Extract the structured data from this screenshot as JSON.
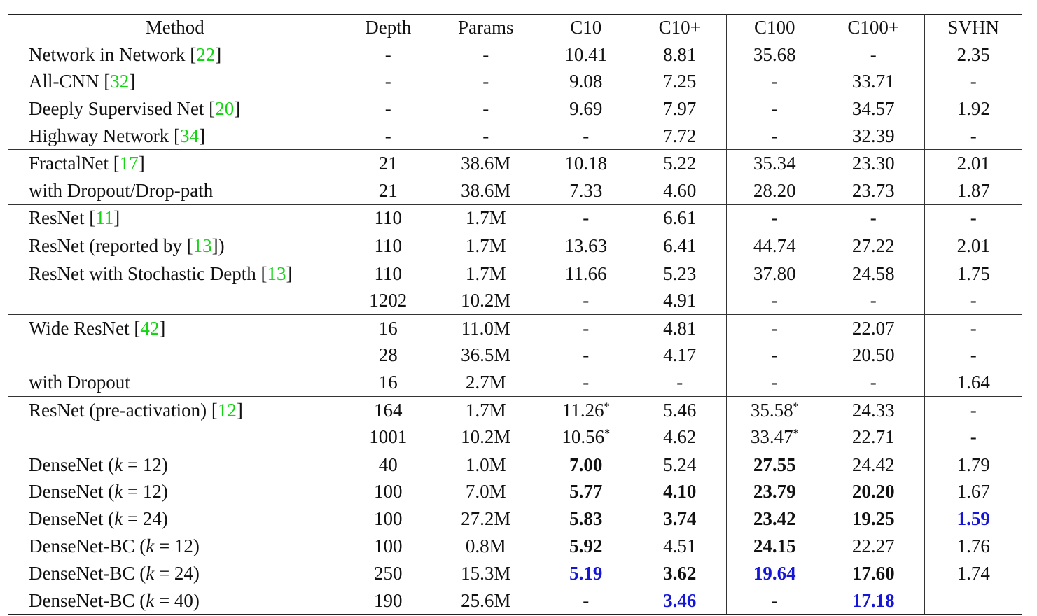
{
  "table": {
    "header": [
      "Method",
      "Depth",
      "Params",
      "C10",
      "C10+",
      "C100",
      "C100+",
      "SVHN"
    ],
    "groups": [
      [
        [
          [
            "Network in Network [",
            {
              "text": "22",
              "color": "#14d414"
            },
            "]"
          ],
          "-",
          "-",
          "10.41",
          "8.81",
          "35.68",
          "-",
          "2.35"
        ],
        [
          [
            "All-CNN [",
            {
              "text": "32",
              "color": "#14d414"
            },
            "]"
          ],
          "-",
          "-",
          "9.08",
          "7.25",
          "-",
          "33.71",
          "-"
        ],
        [
          [
            "Deeply Supervised Net [",
            {
              "text": "20",
              "color": "#14d414"
            },
            "]"
          ],
          "-",
          "-",
          "9.69",
          "7.97",
          "-",
          "34.57",
          "1.92"
        ],
        [
          [
            "Highway Network [",
            {
              "text": "34",
              "color": "#14d414"
            },
            "]"
          ],
          "-",
          "-",
          "-",
          "7.72",
          "-",
          "32.39",
          "-"
        ]
      ],
      [
        [
          [
            "FractalNet [",
            {
              "text": "17",
              "color": "#14d414"
            },
            "]"
          ],
          "21",
          "38.6M",
          "10.18",
          "5.22",
          "35.34",
          "23.30",
          "2.01"
        ],
        [
          "with Dropout/Drop-path",
          "21",
          "38.6M",
          "7.33",
          "4.60",
          "28.20",
          "23.73",
          "1.87"
        ]
      ],
      [
        [
          [
            "ResNet [",
            {
              "text": "11",
              "color": "#14d414"
            },
            "]"
          ],
          "110",
          "1.7M",
          "-",
          "6.61",
          "-",
          "-",
          "-"
        ]
      ],
      [
        [
          [
            "ResNet (reported by [",
            {
              "text": "13",
              "color": "#14d414"
            },
            "])"
          ],
          "110",
          "1.7M",
          "13.63",
          "6.41",
          "44.74",
          "27.22",
          "2.01"
        ]
      ],
      [
        [
          [
            "ResNet with Stochastic Depth [",
            {
              "text": "13",
              "color": "#14d414"
            },
            "]"
          ],
          "110",
          "1.7M",
          "11.66",
          "5.23",
          "37.80",
          "24.58",
          "1.75"
        ],
        [
          null,
          "1202",
          "10.2M",
          "-",
          "4.91",
          "-",
          "-",
          "-"
        ]
      ],
      [
        [
          [
            "Wide ResNet [",
            {
              "text": "42",
              "color": "#14d414"
            },
            "]"
          ],
          "16",
          "11.0M",
          "-",
          "4.81",
          "-",
          "22.07",
          "-"
        ],
        [
          null,
          "28",
          "36.5M",
          "-",
          "4.17",
          "-",
          "20.50",
          "-"
        ],
        [
          "with Dropout",
          "16",
          "2.7M",
          "-",
          "-",
          "-",
          "-",
          "1.64"
        ]
      ],
      [
        [
          [
            "ResNet (pre-activation) [",
            {
              "text": "12",
              "color": "#14d414"
            },
            "]"
          ],
          "164",
          "1.7M",
          [
            "11.26",
            {
              "text": "*",
              "sup": true
            }
          ],
          "5.46",
          [
            "35.58",
            {
              "text": "*",
              "sup": true
            }
          ],
          "24.33",
          "-"
        ],
        [
          null,
          "1001",
          "10.2M",
          [
            "10.56",
            {
              "text": "*",
              "sup": true
            }
          ],
          "4.62",
          [
            "33.47",
            {
              "text": "*",
              "sup": true
            }
          ],
          "22.71",
          "-"
        ]
      ],
      [
        [
          [
            "DenseNet (",
            {
              "text": "k",
              "italic": true
            },
            " = 12)"
          ],
          "40",
          "1.0M",
          {
            "text": "7.00",
            "bold": true
          },
          "5.24",
          {
            "text": "27.55",
            "bold": true
          },
          "24.42",
          "1.79"
        ],
        [
          [
            "DenseNet (",
            {
              "text": "k",
              "italic": true
            },
            " = 12)"
          ],
          "100",
          "7.0M",
          {
            "text": "5.77",
            "bold": true
          },
          {
            "text": "4.10",
            "bold": true
          },
          {
            "text": "23.79",
            "bold": true
          },
          {
            "text": "20.20",
            "bold": true
          },
          "1.67"
        ],
        [
          [
            "DenseNet (",
            {
              "text": "k",
              "italic": true
            },
            " = 24)"
          ],
          "100",
          "27.2M",
          {
            "text": "5.83",
            "bold": true
          },
          {
            "text": "3.74",
            "bold": true
          },
          {
            "text": "23.42",
            "bold": true
          },
          {
            "text": "19.25",
            "bold": true
          },
          {
            "text": "1.59",
            "bold": true,
            "color": "#1515d8"
          }
        ]
      ],
      [
        [
          [
            "DenseNet-BC (",
            {
              "text": "k",
              "italic": true
            },
            " = 12)"
          ],
          "100",
          "0.8M",
          {
            "text": "5.92",
            "bold": true
          },
          "4.51",
          {
            "text": "24.15",
            "bold": true
          },
          "22.27",
          "1.76"
        ],
        [
          [
            "DenseNet-BC (",
            {
              "text": "k",
              "italic": true
            },
            " = 24)"
          ],
          "250",
          "15.3M",
          {
            "text": "5.19",
            "bold": true,
            "color": "#1515d8"
          },
          {
            "text": "3.62",
            "bold": true
          },
          {
            "text": "19.64",
            "bold": true,
            "color": "#1515d8"
          },
          {
            "text": "17.60",
            "bold": true
          },
          "1.74"
        ],
        [
          [
            "DenseNet-BC (",
            {
              "text": "k",
              "italic": true
            },
            " = 40)"
          ],
          "190",
          "25.6M",
          "-",
          {
            "text": "3.46",
            "bold": true,
            "color": "#1515d8"
          },
          "-",
          {
            "text": "17.18",
            "bold": true,
            "color": "#1515d8"
          },
          null
        ]
      ]
    ]
  }
}
